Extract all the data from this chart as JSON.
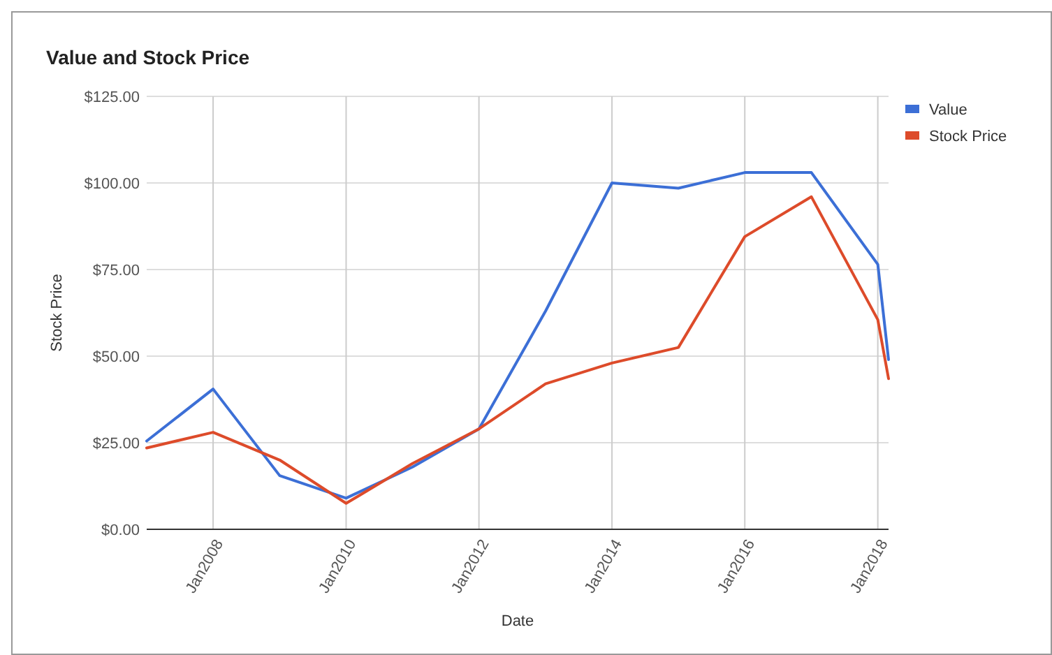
{
  "chart_data": {
    "type": "line",
    "title": "Value and Stock Price",
    "xlabel": "Date",
    "ylabel": "Stock Price",
    "x": [
      "2007-01",
      "2008-01",
      "2009-01",
      "2010-01",
      "2011-01",
      "2012-01",
      "2013-01",
      "2014-01",
      "2015-01",
      "2016-01",
      "2017-01",
      "2018-01",
      "2018-03"
    ],
    "series": [
      {
        "name": "Value",
        "color": "#3c6fd6",
        "values": [
          25.5,
          40.5,
          15.5,
          9,
          18,
          29,
          63,
          100,
          98.5,
          103,
          103,
          76.5,
          49
        ]
      },
      {
        "name": "Stock Price",
        "color": "#dd4b2a",
        "values": [
          23.5,
          28,
          20,
          7.5,
          19,
          29,
          42,
          48,
          52.5,
          84.5,
          96,
          60.5,
          43.5
        ]
      }
    ],
    "xlim": [
      "2007-01",
      "2018-03"
    ],
    "xticks": [
      {
        "value": "2008-01",
        "label": "Jan2008"
      },
      {
        "value": "2010-01",
        "label": "Jan2010"
      },
      {
        "value": "2012-01",
        "label": "Jan2012"
      },
      {
        "value": "2014-01",
        "label": "Jan2014"
      },
      {
        "value": "2016-01",
        "label": "Jan2016"
      },
      {
        "value": "2018-01",
        "label": "Jan2018"
      }
    ],
    "ylim": [
      0,
      125
    ],
    "yticks": [
      {
        "value": 0,
        "label": "$0.00"
      },
      {
        "value": 25,
        "label": "$25.00"
      },
      {
        "value": 50,
        "label": "$50.00"
      },
      {
        "value": 75,
        "label": "$75.00"
      },
      {
        "value": 100,
        "label": "$100.00"
      },
      {
        "value": 125,
        "label": "$125.00"
      }
    ],
    "grid": true,
    "legend": "right",
    "marker": "none",
    "line_style": "solid"
  }
}
